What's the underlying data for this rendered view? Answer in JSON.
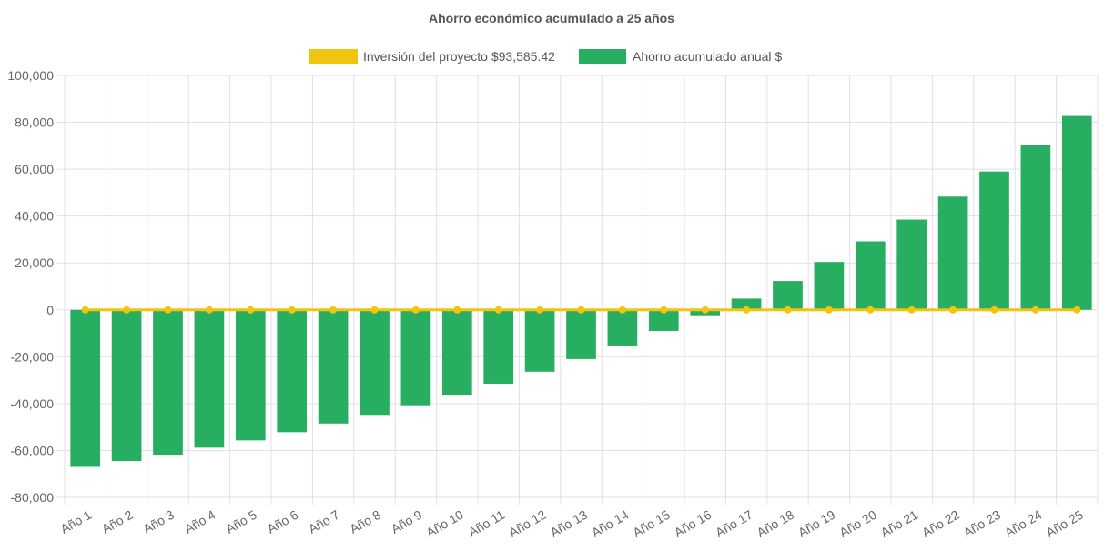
{
  "chart_data": {
    "type": "bar",
    "title": "Ahorro económico acumulado a 25 años",
    "categories": [
      "Año 1",
      "Año 2",
      "Año 3",
      "Año 4",
      "Año 5",
      "Año 6",
      "Año 7",
      "Año 8",
      "Año 9",
      "Año 10",
      "Año 11",
      "Año 12",
      "Año 13",
      "Año 14",
      "Año 15",
      "Año 16",
      "Año 17",
      "Año 18",
      "Año 19",
      "Año 20",
      "Año 21",
      "Año 22",
      "Año 23",
      "Año 24",
      "Año 25"
    ],
    "series": [
      {
        "name": "Inversión del proyecto $93,585.42",
        "type": "line",
        "color": "#f1c40f",
        "values": [
          0,
          0,
          0,
          0,
          0,
          0,
          0,
          0,
          0,
          0,
          0,
          0,
          0,
          0,
          0,
          0,
          0,
          0,
          0,
          0,
          0,
          0,
          0,
          0,
          0
        ]
      },
      {
        "name": "Ahorro acumulado anual $",
        "type": "bar",
        "color": "#27ae60",
        "values": [
          -67000,
          -64500,
          -61800,
          -58800,
          -55700,
          -52200,
          -48500,
          -44800,
          -40700,
          -36200,
          -31500,
          -26400,
          -21000,
          -15200,
          -9000,
          -2300,
          4800,
          12300,
          20400,
          29200,
          38500,
          48300,
          59000,
          70300,
          82700
        ]
      }
    ],
    "xlabel": "",
    "ylabel": "",
    "ylim": [
      -80000,
      100000
    ],
    "yticks": [
      "100,000",
      "80,000",
      "60,000",
      "40,000",
      "20,000",
      "0",
      "-20,000",
      "-40,000",
      "-60,000",
      "-80,000"
    ],
    "legend": "top-center",
    "grid": true
  }
}
